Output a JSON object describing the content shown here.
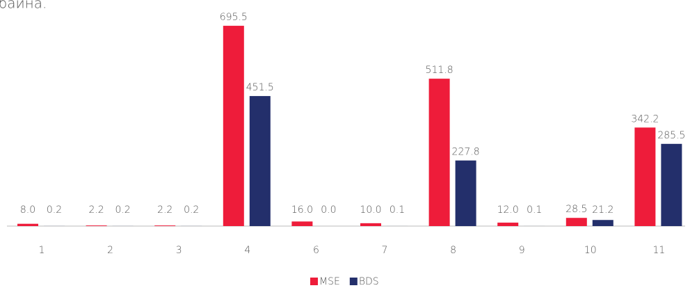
{
  "chart_data": {
    "type": "bar",
    "title": "байна.",
    "categories": [
      "1",
      "2",
      "3",
      "4",
      "6",
      "7",
      "8",
      "9",
      "10",
      "11"
    ],
    "series": [
      {
        "name": "MSE",
        "color": "#ee1c3a",
        "values": [
          8.0,
          2.2,
          2.2,
          695.5,
          16.0,
          10.0,
          511.8,
          12.0,
          28.5,
          342.2
        ],
        "value_labels": [
          "8.0",
          "2.2",
          "2.2",
          "695.5",
          "16.0",
          "10.0",
          "511.8",
          "12.0",
          "28.5",
          "342.2"
        ]
      },
      {
        "name": "BDS",
        "color": "#232f6b",
        "values": [
          0.2,
          0.2,
          0.2,
          451.5,
          0.0,
          0.1,
          227.8,
          0.1,
          21.2,
          285.5
        ],
        "value_labels": [
          "0.2",
          "0.2",
          "0.2",
          "451.5",
          "0.0",
          "0.1",
          "227.8",
          "0.1",
          "21.2",
          "285.5"
        ]
      }
    ],
    "legend": "bottom"
  }
}
